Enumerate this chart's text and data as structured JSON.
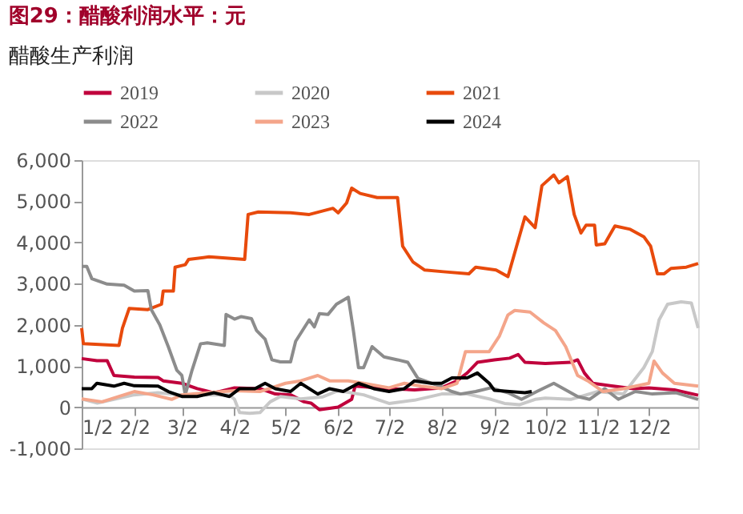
{
  "chart_data": {
    "type": "line",
    "title": "图29：醋酸利润水平：元",
    "subtitle": "醋酸生产利润",
    "ylim": [
      -1000,
      6000
    ],
    "yticks": [
      {
        "value": -1000,
        "label": "-1,000"
      },
      {
        "value": 0,
        "label": "0"
      },
      {
        "value": 1000,
        "label": "1,000"
      },
      {
        "value": 2000,
        "label": "2,000"
      },
      {
        "value": 3000,
        "label": "3,000"
      },
      {
        "value": 4000,
        "label": "4,000"
      },
      {
        "value": 5000,
        "label": "5,000"
      },
      {
        "value": 6000,
        "label": "6,000"
      }
    ],
    "xlim": [
      "--01-02",
      "--12-31"
    ],
    "xticks": [
      {
        "value": "--01-02",
        "label": "1/2"
      },
      {
        "value": "--02-02",
        "label": "2/2"
      },
      {
        "value": "--03-02",
        "label": "3/2"
      },
      {
        "value": "--04-02",
        "label": "4/2"
      },
      {
        "value": "--05-02",
        "label": "5/2"
      },
      {
        "value": "--06-02",
        "label": "6/2"
      },
      {
        "value": "--07-02",
        "label": "7/2"
      },
      {
        "value": "--08-02",
        "label": "8/2"
      },
      {
        "value": "--09-02",
        "label": "9/2"
      },
      {
        "value": "--10-02",
        "label": "10/2"
      },
      {
        "value": "--11-02",
        "label": "11/2"
      },
      {
        "value": "--12-02",
        "label": "12/2"
      }
    ],
    "grid": false,
    "legend": "top",
    "marker": "none",
    "line_style": "solid",
    "series": [
      {
        "name": "2019",
        "color": "#c0003c",
        "x": [
          "--01-02",
          "--01-11",
          "--01-17",
          "--01-21",
          "--02-02",
          "--02-16",
          "--02-19",
          "--03-02",
          "--03-11",
          "--03-21",
          "--04-02",
          "--04-17",
          "--04-26",
          "--05-05",
          "--05-13",
          "--05-17",
          "--05-22",
          "--06-02",
          "--06-10",
          "--06-12",
          "--07-02",
          "--07-17",
          "--08-02",
          "--08-11",
          "--08-17",
          "--08-23",
          "--09-02",
          "--09-11",
          "--09-16",
          "--09-20",
          "--10-02",
          "--10-17",
          "--10-21",
          "--10-25",
          "--10-30",
          "--11-11",
          "--11-23",
          "--12-02",
          "--12-17",
          "--12-31"
        ],
        "values": [
          1180,
          1130,
          1130,
          770,
          730,
          720,
          640,
          580,
          450,
          350,
          470,
          450,
          320,
          300,
          130,
          100,
          -60,
          0,
          190,
          510,
          450,
          420,
          470,
          640,
          830,
          1090,
          1150,
          1190,
          1280,
          1090,
          1060,
          1090,
          1150,
          830,
          580,
          510,
          450,
          470,
          420,
          290
        ]
      },
      {
        "name": "2020",
        "color": "#c8c8c8",
        "x": [
          "--01-02",
          "--01-11",
          "--01-21",
          "--02-02",
          "--02-16",
          "--03-02",
          "--03-17",
          "--03-30",
          "--04-02",
          "--04-05",
          "--04-11",
          "--04-17",
          "--04-23",
          "--04-29",
          "--05-11",
          "--05-24",
          "--06-02",
          "--06-17",
          "--07-02",
          "--07-17",
          "--08-02",
          "--08-17",
          "--08-31",
          "--09-08",
          "--09-17",
          "--09-26",
          "--10-02",
          "--10-17",
          "--11-02",
          "--11-17",
          "--11-29",
          "--12-04",
          "--12-08",
          "--12-13",
          "--12-21",
          "--12-27",
          "--12-31"
        ],
        "values": [
          200,
          100,
          190,
          300,
          350,
          300,
          300,
          300,
          190,
          -130,
          -150,
          -130,
          130,
          260,
          200,
          250,
          400,
          300,
          90,
          170,
          320,
          320,
          190,
          90,
          60,
          190,
          220,
          190,
          380,
          320,
          960,
          1350,
          2120,
          2500,
          2560,
          2530,
          1920
        ]
      },
      {
        "name": "2021",
        "color": "#e84a0c",
        "x": [
          "--01-02",
          "--01-03",
          "--01-24",
          "--01-26",
          "--01-30",
          "--02-10",
          "--02-18",
          "--02-19",
          "--02-25",
          "--02-26",
          "--03-04",
          "--03-06",
          "--03-18",
          "--04-08",
          "--04-10",
          "--04-16",
          "--05-05",
          "--05-16",
          "--05-30",
          "--06-02",
          "--06-07",
          "--06-10",
          "--06-15",
          "--06-25",
          "--07-07",
          "--07-10",
          "--07-16",
          "--07-23",
          "--08-03",
          "--08-18",
          "--08-22",
          "--09-03",
          "--09-10",
          "--09-16",
          "--09-20",
          "--09-26",
          "--09-30",
          "--10-07",
          "--10-10",
          "--10-15",
          "--10-19",
          "--10-23",
          "--10-26",
          "--10-31",
          "--11-01",
          "--11-06",
          "--11-12",
          "--11-21",
          "--11-29",
          "--12-03",
          "--12-07",
          "--12-11",
          "--12-15",
          "--12-24",
          "--12-31"
        ],
        "values": [
          1920,
          1540,
          1500,
          1920,
          2400,
          2370,
          2500,
          2820,
          2820,
          3400,
          3460,
          3590,
          3650,
          3590,
          4680,
          4740,
          4720,
          4680,
          4830,
          4720,
          4960,
          5320,
          5190,
          5090,
          5090,
          3910,
          3530,
          3330,
          3290,
          3240,
          3400,
          3330,
          3170,
          4040,
          4620,
          4360,
          5380,
          5640,
          5450,
          5600,
          4680,
          4230,
          4420,
          4420,
          3940,
          3970,
          4400,
          4320,
          4140,
          3910,
          3240,
          3240,
          3370,
          3400,
          3490
        ]
      },
      {
        "name": "2022",
        "color": "#8c8c8c",
        "x": [
          "--01-02",
          "--01-05",
          "--01-08",
          "--01-17",
          "--01-27",
          "--02-02",
          "--02-10",
          "--02-12",
          "--02-17",
          "--02-22",
          "--02-27",
          "--03-02",
          "--03-04",
          "--03-08",
          "--03-13",
          "--03-17",
          "--03-27",
          "--03-28",
          "--04-02",
          "--04-06",
          "--04-12",
          "--04-15",
          "--04-20",
          "--04-24",
          "--04-29",
          "--05-05",
          "--05-08",
          "--05-16",
          "--05-19",
          "--05-22",
          "--05-27",
          "--06-01",
          "--06-08",
          "--06-11",
          "--06-14",
          "--06-17",
          "--06-22",
          "--06-29",
          "--07-07",
          "--07-13",
          "--07-19",
          "--08-01",
          "--08-08",
          "--08-13",
          "--08-22",
          "--08-31",
          "--09-10",
          "--09-18",
          "--09-27",
          "--10-07",
          "--10-14",
          "--10-21",
          "--10-28",
          "--11-06",
          "--11-14",
          "--11-24",
          "--12-04",
          "--12-18",
          "--12-31"
        ],
        "values": [
          3420,
          3420,
          3120,
          2990,
          2960,
          2820,
          2830,
          2370,
          2000,
          1470,
          900,
          770,
          300,
          900,
          1540,
          1560,
          1500,
          2250,
          2140,
          2200,
          2150,
          1860,
          1650,
          1150,
          1100,
          1100,
          1600,
          2120,
          1950,
          2270,
          2250,
          2500,
          2670,
          1860,
          960,
          960,
          1470,
          1220,
          1150,
          1090,
          700,
          510,
          380,
          320,
          380,
          470,
          350,
          190,
          380,
          580,
          420,
          260,
          190,
          450,
          190,
          380,
          320,
          350,
          190
        ]
      },
      {
        "name": "2023",
        "color": "#f4a58a",
        "x": [
          "--01-02",
          "--01-14",
          "--01-24",
          "--02-02",
          "--02-13",
          "--02-24",
          "--03-02",
          "--03-17",
          "--04-02",
          "--04-17",
          "--05-02",
          "--05-11",
          "--05-21",
          "--05-28",
          "--06-08",
          "--06-17",
          "--07-02",
          "--07-11",
          "--07-21",
          "--08-02",
          "--08-11",
          "--08-16",
          "--08-21",
          "--08-30",
          "--09-05",
          "--09-10",
          "--09-14",
          "--09-23",
          "--10-01",
          "--10-08",
          "--10-14",
          "--10-21",
          "--10-27",
          "--11-05",
          "--11-17",
          "--12-02",
          "--12-05",
          "--12-10",
          "--12-17",
          "--12-31"
        ],
        "values": [
          200,
          130,
          260,
          380,
          300,
          190,
          300,
          350,
          400,
          380,
          580,
          640,
          770,
          640,
          640,
          580,
          470,
          580,
          510,
          450,
          580,
          1350,
          1350,
          1350,
          1730,
          2240,
          2350,
          2310,
          2050,
          1860,
          1470,
          770,
          640,
          380,
          450,
          580,
          1120,
          830,
          580,
          510
        ]
      },
      {
        "name": "2024",
        "color": "#000000",
        "x": [
          "--01-02",
          "--01-08",
          "--01-11",
          "--01-21",
          "--01-27",
          "--02-02",
          "--02-16",
          "--02-22",
          "--03-02",
          "--03-11",
          "--03-21",
          "--03-30",
          "--04-05",
          "--04-14",
          "--04-20",
          "--04-26",
          "--05-05",
          "--05-11",
          "--05-21",
          "--05-28",
          "--06-05",
          "--06-14",
          "--06-23",
          "--07-02",
          "--07-11",
          "--07-17",
          "--07-27",
          "--08-02",
          "--08-08",
          "--08-17",
          "--08-23",
          "--08-30",
          "--09-02",
          "--09-11",
          "--09-20",
          "--09-24"
        ],
        "values": [
          450,
          450,
          580,
          510,
          580,
          520,
          510,
          380,
          260,
          260,
          350,
          260,
          450,
          450,
          580,
          450,
          380,
          580,
          320,
          450,
          380,
          580,
          450,
          380,
          450,
          640,
          580,
          580,
          710,
          710,
          830,
          580,
          410,
          380,
          350,
          380
        ]
      }
    ]
  }
}
